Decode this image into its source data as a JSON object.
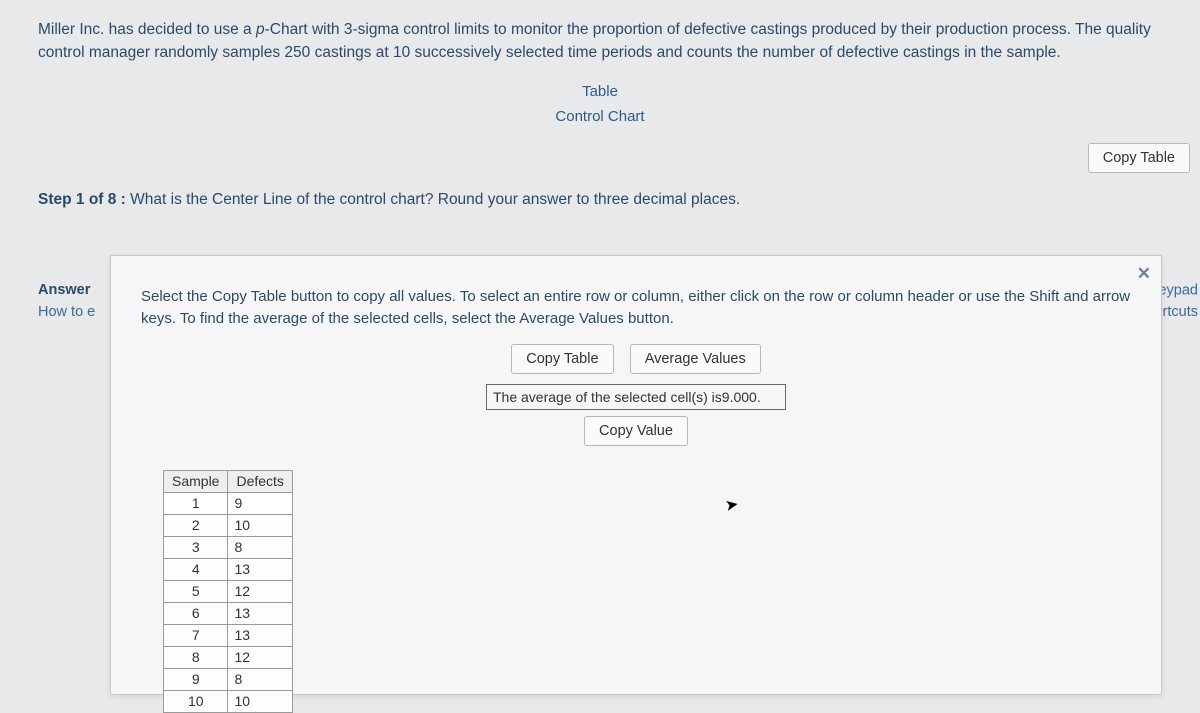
{
  "problem": {
    "line1_a": "Miller Inc. has decided to use a ",
    "line1_b": "p",
    "line1_c": "-Chart with 3-sigma control limits to monitor the proportion of defective castings produced by their production process.  The quality",
    "line2_a": "control manager randomly samples ",
    "line2_b": "250",
    "line2_c": " castings at ",
    "line2_d": "10",
    "line2_e": " successively selected time periods and counts the number of defective castings in the sample."
  },
  "links": {
    "table": "Table",
    "control_chart": "Control Chart"
  },
  "buttons": {
    "copy_table_top": "Copy Table",
    "copy_table": "Copy Table",
    "average_values": "Average Values",
    "copy_value": "Copy Value"
  },
  "step": {
    "prefix": "Step 1 of 8 :",
    "text": "  What is the Center Line of the control chart? Round your answer to three decimal places."
  },
  "labels": {
    "answer": "Answer",
    "how_to": "How to e",
    "keypad": "Keypad",
    "shortcuts": "board Shortcuts"
  },
  "popup": {
    "instructions": "Select the Copy Table button to copy all values. To select an entire row or column, either click on the row or column header or use the Shift and arrow keys. To find the average of the selected cells, select the Average Values button.",
    "avg_prefix": "The average of the selected cell(s) is",
    "avg_value": "9.000",
    "avg_suffix": "."
  },
  "table": {
    "headers": {
      "sample": "Sample",
      "defects": "Defects"
    },
    "rows": [
      {
        "sample": "1",
        "defects": "9"
      },
      {
        "sample": "2",
        "defects": "10"
      },
      {
        "sample": "3",
        "defects": "8"
      },
      {
        "sample": "4",
        "defects": "13"
      },
      {
        "sample": "5",
        "defects": "12"
      },
      {
        "sample": "6",
        "defects": "13"
      },
      {
        "sample": "7",
        "defects": "13"
      },
      {
        "sample": "8",
        "defects": "12"
      },
      {
        "sample": "9",
        "defects": "8"
      },
      {
        "sample": "10",
        "defects": "10"
      }
    ],
    "selected_row_index": 0
  },
  "style": {
    "background": "#e8e9ea",
    "text_color": "#2a4a6a",
    "link_color": "#2a5a8a",
    "button_bg": "#fafafa",
    "button_border": "#b8b8b8",
    "popup_bg": "#f6f6f6",
    "table_border": "#9a9a9a",
    "table_header_bg": "#eceef0",
    "font_family": "Segoe UI, Arial, sans-serif",
    "body_fontsize": 15
  }
}
